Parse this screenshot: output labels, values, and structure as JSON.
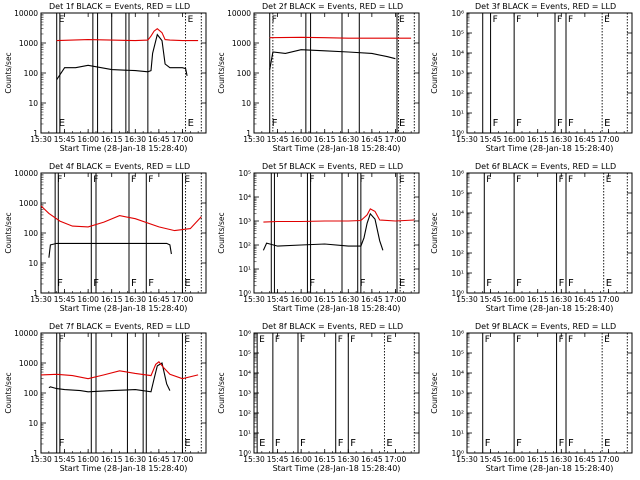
{
  "figure": {
    "x_axis_title": "Start Time (28-Jan-18 15:28:40)",
    "y_axis_title": "Counts/sec",
    "colors": {
      "events": "#000000",
      "lld": "#e00000",
      "axes": "#000000",
      "background": "#ffffff"
    }
  },
  "chart_data": [
    {
      "type": "line",
      "title": "Det 1f BLACK = Events, RED = LLD",
      "xlabel": "Start Time (28-Jan-18 15:28:40)",
      "ylabel": "Counts/sec",
      "yscale": "log",
      "xlim": [
        "15:30",
        "17:15"
      ],
      "ylim": [
        1,
        10000
      ],
      "x_ticks": [
        "15:30",
        "15:45",
        "16:00",
        "16:15",
        "16:30",
        "16:45",
        "17:00"
      ],
      "y_ticks": [
        "1",
        "10",
        "100",
        "1000",
        "10000"
      ],
      "series": [
        {
          "color": "#000000",
          "x": [
            "15:40",
            "15:45",
            "15:52",
            "16:00",
            "16:15",
            "16:30",
            "16:38",
            "16:40",
            "16:41",
            "16:44",
            "16:47",
            "16:49",
            "16:52",
            "17:00",
            "17:02",
            "17:03"
          ],
          "y": [
            60,
            150,
            150,
            180,
            130,
            120,
            110,
            120,
            450,
            1900,
            1200,
            200,
            150,
            150,
            140,
            80
          ]
        },
        {
          "color": "#e00000",
          "x": [
            "15:40",
            "16:00",
            "16:15",
            "16:30",
            "16:38",
            "16:40",
            "16:42",
            "16:44",
            "16:47",
            "16:49",
            "16:52",
            "17:00",
            "17:10"
          ],
          "y": [
            1200,
            1300,
            1250,
            1200,
            1250,
            1700,
            2500,
            3000,
            2200,
            1300,
            1250,
            1200,
            1200
          ]
        }
      ],
      "vertical_lines": [
        {
          "x": "15:40",
          "style": "solid",
          "label": "E"
        },
        {
          "x": "15:42",
          "style": "solid",
          "label": ""
        },
        {
          "x": "16:03",
          "style": "solid",
          "label": ""
        },
        {
          "x": "16:06",
          "style": "solid",
          "label": ""
        },
        {
          "x": "16:15",
          "style": "solid",
          "label": ""
        },
        {
          "x": "16:24",
          "style": "solid",
          "label": ""
        },
        {
          "x": "16:26",
          "style": "solid",
          "label": ""
        },
        {
          "x": "16:38",
          "style": "solid",
          "label": ""
        },
        {
          "x": "17:02",
          "style": "dotted",
          "label": "E"
        },
        {
          "x": "17:12",
          "style": "dotted",
          "label": ""
        }
      ]
    },
    {
      "type": "line",
      "title": "Det 2f BLACK = Events, RED = LLD",
      "xlabel": "Start Time (28-Jan-18 15:28:40)",
      "ylabel": "Counts/sec",
      "yscale": "log",
      "xlim": [
        "15:30",
        "17:15"
      ],
      "ylim": [
        1,
        10000
      ],
      "x_ticks": [
        "15:30",
        "15:45",
        "16:00",
        "16:15",
        "16:30",
        "16:45",
        "17:00"
      ],
      "y_ticks": [
        "1",
        "10",
        "100",
        "1000",
        "10000"
      ],
      "series": [
        {
          "color": "#000000",
          "x": [
            "15:40",
            "15:42",
            "15:50",
            "16:00",
            "16:15",
            "16:30",
            "16:45",
            "16:55",
            "17:00"
          ],
          "y": [
            130,
            500,
            450,
            600,
            550,
            500,
            450,
            350,
            300
          ]
        },
        {
          "color": "#e00000",
          "x": [
            "15:40",
            "16:00",
            "16:15",
            "16:30",
            "16:45",
            "17:00",
            "17:10"
          ],
          "y": [
            1500,
            1550,
            1500,
            1450,
            1450,
            1450,
            1450
          ]
        }
      ],
      "vertical_lines": [
        {
          "x": "15:40",
          "style": "solid",
          "label": "F"
        },
        {
          "x": "15:42",
          "style": "dotted",
          "label": ""
        },
        {
          "x": "16:03",
          "style": "solid",
          "label": ""
        },
        {
          "x": "16:06",
          "style": "solid",
          "label": ""
        },
        {
          "x": "16:26",
          "style": "solid",
          "label": ""
        },
        {
          "x": "16:37",
          "style": "solid",
          "label": ""
        },
        {
          "x": "17:01",
          "style": "solid",
          "label": "E"
        },
        {
          "x": "17:02",
          "style": "dotted",
          "label": ""
        },
        {
          "x": "17:12",
          "style": "dotted",
          "label": ""
        }
      ]
    },
    {
      "type": "line",
      "title": "Det 3f BLACK = Events, RED = LLD",
      "xlabel": "Start Time (28-Jan-18 15:28:40)",
      "ylabel": "Counts/sec",
      "yscale": "log",
      "xlim": [
        "15:30",
        "17:15"
      ],
      "ylim": [
        1,
        1000000
      ],
      "x_ticks": [
        "15:30",
        "15:45",
        "16:00",
        "16:15",
        "16:30",
        "16:45",
        "17:00"
      ],
      "y_ticks": [
        "10⁰",
        "10¹",
        "10²",
        "10³",
        "10⁴",
        "10⁵",
        "10⁶"
      ],
      "series": [],
      "vertical_lines": [
        {
          "x": "15:40",
          "style": "solid",
          "label": ""
        },
        {
          "x": "15:45",
          "style": "solid",
          "label": "F"
        },
        {
          "x": "16:00",
          "style": "solid",
          "label": "F"
        },
        {
          "x": "16:26",
          "style": "solid",
          "label": "F"
        },
        {
          "x": "16:33",
          "style": "solid",
          "label": "F"
        },
        {
          "x": "16:56",
          "style": "dotted",
          "label": "E"
        },
        {
          "x": "17:12",
          "style": "dotted",
          "label": ""
        }
      ]
    },
    {
      "type": "line",
      "title": "Det 4f BLACK = Events, RED = LLD",
      "xlabel": "Start Time (28-Jan-18 15:28:40)",
      "ylabel": "Counts/sec",
      "yscale": "log",
      "xlim": [
        "15:30",
        "17:15"
      ],
      "ylim": [
        1,
        10000
      ],
      "x_ticks": [
        "15:30",
        "15:45",
        "16:00",
        "16:15",
        "16:30",
        "16:45",
        "17:00"
      ],
      "y_ticks": [
        "1",
        "10",
        "100",
        "1000",
        "10000"
      ],
      "series": [
        {
          "color": "#000000",
          "x": [
            "15:35",
            "15:36",
            "15:40",
            "15:50",
            "16:00",
            "16:15",
            "16:30",
            "16:45",
            "16:50",
            "16:52",
            "16:53"
          ],
          "y": [
            15,
            40,
            45,
            45,
            45,
            45,
            45,
            45,
            45,
            40,
            20
          ]
        },
        {
          "color": "#e00000",
          "x": [
            "15:30",
            "15:35",
            "15:42",
            "15:50",
            "16:00",
            "16:10",
            "16:20",
            "16:30",
            "16:45",
            "16:55",
            "17:05",
            "17:12"
          ],
          "y": [
            800,
            450,
            250,
            170,
            160,
            230,
            380,
            300,
            160,
            120,
            140,
            350
          ]
        }
      ],
      "vertical_lines": [
        {
          "x": "15:39",
          "style": "solid",
          "label": "F"
        },
        {
          "x": "15:41",
          "style": "solid",
          "label": ""
        },
        {
          "x": "16:02",
          "style": "solid",
          "label": "F"
        },
        {
          "x": "16:05",
          "style": "solid",
          "label": ""
        },
        {
          "x": "16:26",
          "style": "solid",
          "label": "F"
        },
        {
          "x": "16:37",
          "style": "solid",
          "label": "F"
        },
        {
          "x": "17:00",
          "style": "solid",
          "label": "E"
        },
        {
          "x": "17:02",
          "style": "dotted",
          "label": ""
        },
        {
          "x": "17:12",
          "style": "dotted",
          "label": ""
        }
      ]
    },
    {
      "type": "line",
      "title": "Det 5f BLACK = Events, RED = LLD",
      "xlabel": "Start Time (28-Jan-18 15:28:40)",
      "ylabel": "Counts/sec",
      "yscale": "log",
      "xlim": [
        "15:30",
        "17:15"
      ],
      "ylim": [
        1,
        100000
      ],
      "x_ticks": [
        "15:30",
        "15:45",
        "16:00",
        "16:15",
        "16:30",
        "16:45",
        "17:00"
      ],
      "y_ticks": [
        "10⁰",
        "10¹",
        "10²",
        "10³",
        "10⁴",
        "10⁵"
      ],
      "series": [
        {
          "color": "#000000",
          "x": [
            "15:36",
            "15:38",
            "15:45",
            "16:00",
            "16:15",
            "16:30",
            "16:38",
            "16:40",
            "16:42",
            "16:44",
            "16:47",
            "16:50",
            "16:52"
          ],
          "y": [
            60,
            120,
            90,
            100,
            110,
            90,
            90,
            200,
            800,
            2000,
            1200,
            150,
            60
          ]
        },
        {
          "color": "#e00000",
          "x": [
            "15:36",
            "15:45",
            "16:00",
            "16:15",
            "16:30",
            "16:38",
            "16:42",
            "16:44",
            "16:47",
            "16:50",
            "17:00",
            "17:12"
          ],
          "y": [
            900,
            950,
            950,
            1000,
            1000,
            1050,
            1800,
            3200,
            2500,
            1100,
            1000,
            1100
          ]
        }
      ],
      "vertical_lines": [
        {
          "x": "15:41",
          "style": "solid",
          "label": ""
        },
        {
          "x": "15:43",
          "style": "solid",
          "label": ""
        },
        {
          "x": "16:04",
          "style": "solid",
          "label": "F"
        },
        {
          "x": "16:06",
          "style": "solid",
          "label": ""
        },
        {
          "x": "16:26",
          "style": "solid",
          "label": ""
        },
        {
          "x": "16:36",
          "style": "solid",
          "label": "F"
        },
        {
          "x": "16:38",
          "style": "solid",
          "label": ""
        },
        {
          "x": "17:01",
          "style": "solid",
          "label": "E"
        },
        {
          "x": "17:03",
          "style": "dotted",
          "label": ""
        },
        {
          "x": "17:12",
          "style": "dotted",
          "label": ""
        }
      ]
    },
    {
      "type": "line",
      "title": "Det 6f BLACK = Events, RED = LLD",
      "xlabel": "Start Time (28-Jan-18 15:28:40)",
      "ylabel": "Counts/sec",
      "yscale": "log",
      "xlim": [
        "15:30",
        "17:15"
      ],
      "ylim": [
        1,
        1000000
      ],
      "x_ticks": [
        "15:30",
        "15:45",
        "16:00",
        "16:15",
        "16:30",
        "16:45",
        "17:00"
      ],
      "y_ticks": [
        "10⁰",
        "10¹",
        "10²",
        "10³",
        "10⁴",
        "10⁵",
        "10⁶"
      ],
      "series": [],
      "vertical_lines": [
        {
          "x": "15:41",
          "style": "solid",
          "label": "F"
        },
        {
          "x": "16:00",
          "style": "solid",
          "label": "F"
        },
        {
          "x": "16:27",
          "style": "solid",
          "label": "F"
        },
        {
          "x": "16:33",
          "style": "solid",
          "label": "F"
        },
        {
          "x": "16:57",
          "style": "dotted",
          "label": "E"
        },
        {
          "x": "17:12",
          "style": "dotted",
          "label": ""
        }
      ]
    },
    {
      "type": "line",
      "title": "Det 7f BLACK = Events, RED = LLD",
      "xlabel": "Start Time (28-Jan-18 15:28:40)",
      "ylabel": "Counts/sec",
      "yscale": "log",
      "xlim": [
        "15:30",
        "17:15"
      ],
      "ylim": [
        1,
        10000
      ],
      "x_ticks": [
        "15:30",
        "15:45",
        "16:00",
        "16:15",
        "16:30",
        "16:45",
        "17:00"
      ],
      "y_ticks": [
        "1",
        "10",
        "100",
        "1000",
        "10000"
      ],
      "series": [
        {
          "color": "#000000",
          "x": [
            "15:35",
            "15:36",
            "15:40",
            "15:45",
            "15:55",
            "16:00",
            "16:15",
            "16:30",
            "16:40",
            "16:42",
            "16:44",
            "16:47",
            "16:50",
            "16:52"
          ],
          "y": [
            150,
            160,
            140,
            130,
            120,
            110,
            120,
            130,
            110,
            300,
            800,
            1000,
            200,
            120
          ]
        },
        {
          "color": "#e00000",
          "x": [
            "15:30",
            "15:40",
            "15:50",
            "16:00",
            "16:10",
            "16:20",
            "16:30",
            "16:40",
            "16:43",
            "16:45",
            "16:48",
            "16:52",
            "17:00",
            "17:10"
          ],
          "y": [
            400,
            420,
            380,
            300,
            400,
            550,
            450,
            380,
            900,
            1100,
            700,
            420,
            300,
            400
          ]
        }
      ],
      "vertical_lines": [
        {
          "x": "15:40",
          "style": "solid",
          "label": "F"
        },
        {
          "x": "15:42",
          "style": "solid",
          "label": ""
        },
        {
          "x": "16:02",
          "style": "solid",
          "label": ""
        },
        {
          "x": "16:05",
          "style": "solid",
          "label": ""
        },
        {
          "x": "16:25",
          "style": "solid",
          "label": ""
        },
        {
          "x": "16:35",
          "style": "solid",
          "label": ""
        },
        {
          "x": "16:37",
          "style": "solid",
          "label": ""
        },
        {
          "x": "17:00",
          "style": "solid",
          "label": "E"
        },
        {
          "x": "17:02",
          "style": "dotted",
          "label": ""
        },
        {
          "x": "17:12",
          "style": "dotted",
          "label": ""
        }
      ]
    },
    {
      "type": "line",
      "title": "Det 8f BLACK = Events, RED = LLD",
      "xlabel": "Start Time (28-Jan-18 15:28:40)",
      "ylabel": "Counts/sec",
      "yscale": "log",
      "xlim": [
        "15:30",
        "17:15"
      ],
      "ylim": [
        1,
        1000000
      ],
      "x_ticks": [
        "15:30",
        "15:45",
        "16:00",
        "16:15",
        "16:30",
        "16:45",
        "17:00"
      ],
      "y_ticks": [
        "10⁰",
        "10¹",
        "10²",
        "10³",
        "10⁴",
        "10⁵",
        "10⁶"
      ],
      "series": [],
      "vertical_lines": [
        {
          "x": "15:32",
          "style": "solid",
          "label": "E"
        },
        {
          "x": "15:42",
          "style": "solid",
          "label": "F"
        },
        {
          "x": "15:58",
          "style": "solid",
          "label": "F"
        },
        {
          "x": "16:22",
          "style": "solid",
          "label": "F"
        },
        {
          "x": "16:30",
          "style": "solid",
          "label": "F"
        },
        {
          "x": "16:53",
          "style": "dotted",
          "label": "E"
        },
        {
          "x": "17:12",
          "style": "dotted",
          "label": ""
        }
      ]
    },
    {
      "type": "line",
      "title": "Det 9f BLACK = Events, RED = LLD",
      "xlabel": "Start Time (28-Jan-18 15:28:40)",
      "ylabel": "Counts/sec",
      "yscale": "log",
      "xlim": [
        "15:30",
        "17:15"
      ],
      "ylim": [
        1,
        1000000
      ],
      "x_ticks": [
        "15:30",
        "15:45",
        "16:00",
        "16:15",
        "16:30",
        "16:45",
        "17:00"
      ],
      "y_ticks": [
        "10⁰",
        "10¹",
        "10²",
        "10³",
        "10⁴",
        "10⁵",
        "10⁶"
      ],
      "series": [],
      "vertical_lines": [
        {
          "x": "15:40",
          "style": "solid",
          "label": "F"
        },
        {
          "x": "16:00",
          "style": "solid",
          "label": "F"
        },
        {
          "x": "16:27",
          "style": "solid",
          "label": "F"
        },
        {
          "x": "16:33",
          "style": "solid",
          "label": "F"
        },
        {
          "x": "16:56",
          "style": "dotted",
          "label": "E"
        },
        {
          "x": "17:12",
          "style": "dotted",
          "label": ""
        }
      ]
    }
  ]
}
